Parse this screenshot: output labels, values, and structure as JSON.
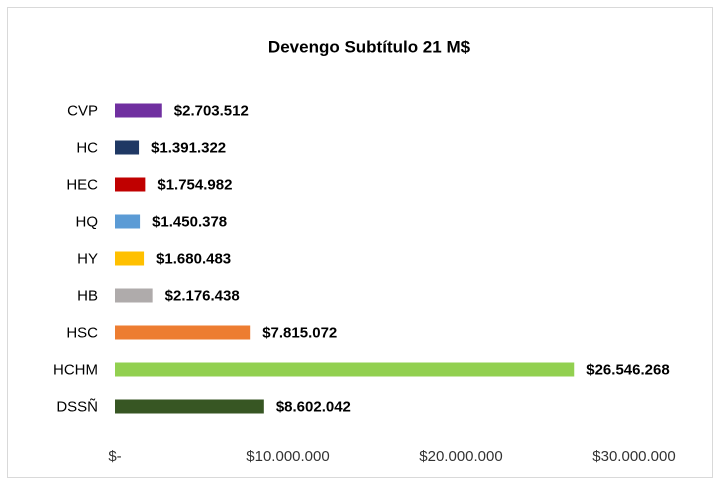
{
  "chart_data": {
    "type": "bar",
    "orientation": "horizontal",
    "title": "Devengo Subtítulo 21 M$",
    "categories": [
      "CVP",
      "HC",
      "HEC",
      "HQ",
      "HY",
      "HB",
      "HSC",
      "HCHM",
      "DSSÑ"
    ],
    "values": [
      2703512,
      1391322,
      1754982,
      1450378,
      1680483,
      2176438,
      7815072,
      26546268,
      8602042
    ],
    "value_labels": [
      "$2.703.512",
      "$1.391.322",
      "$1.754.982",
      "$1.450.378",
      "$1.680.483",
      "$2.176.438",
      "$7.815.072",
      "$26.546.268",
      "$8.602.042"
    ],
    "colors": [
      "#7030a0",
      "#1f3864",
      "#c00000",
      "#5b9bd5",
      "#ffc000",
      "#afabab",
      "#ed7d31",
      "#92d050",
      "#375623"
    ],
    "xlim": [
      0,
      30000000
    ],
    "xticks": [
      {
        "value": 0,
        "label": "$-"
      },
      {
        "value": 10000000,
        "label": "$10.000.000"
      },
      {
        "value": 20000000,
        "label": "$20.000.000"
      },
      {
        "value": 30000000,
        "label": "$30.000.000"
      }
    ],
    "grid": false
  }
}
